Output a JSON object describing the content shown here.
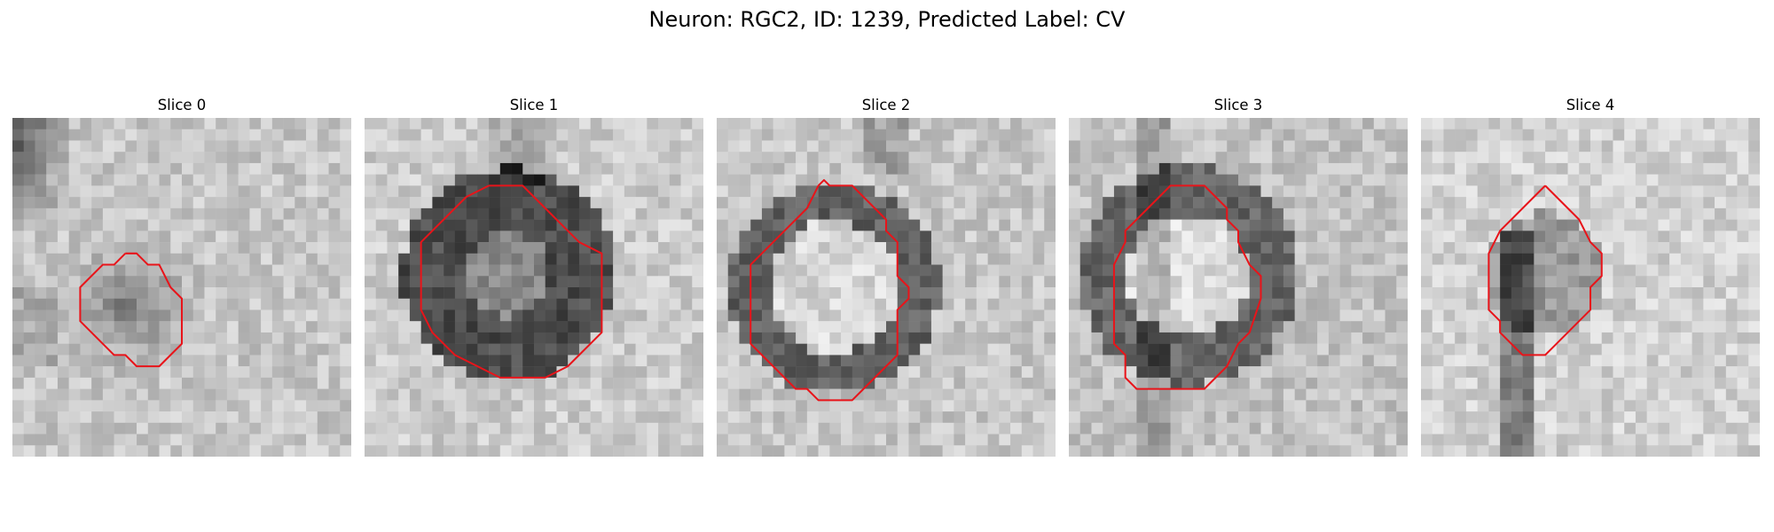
{
  "figure": {
    "title": "Neuron: RGC2, ID: 1239, Predicted Label: CV"
  },
  "panels": [
    {
      "title": "Slice 0",
      "roi": [
        [
          10,
          12
        ],
        [
          11,
          12
        ],
        [
          12,
          13
        ],
        [
          13,
          13
        ],
        [
          14,
          15
        ],
        [
          15,
          16
        ],
        [
          15,
          20
        ],
        [
          14,
          21
        ],
        [
          13,
          22
        ],
        [
          11,
          22
        ],
        [
          10,
          21
        ],
        [
          9,
          21
        ],
        [
          8,
          20
        ],
        [
          7,
          19
        ],
        [
          6,
          18
        ],
        [
          6,
          15
        ],
        [
          7,
          14
        ],
        [
          8,
          13
        ],
        [
          9,
          13
        ],
        [
          10,
          12
        ]
      ]
    },
    {
      "title": "Slice 1",
      "roi": [
        [
          11,
          6
        ],
        [
          14,
          6
        ],
        [
          15,
          7
        ],
        [
          16,
          8
        ],
        [
          17,
          9
        ],
        [
          18,
          10
        ],
        [
          19,
          11
        ],
        [
          21,
          12
        ],
        [
          21,
          19
        ],
        [
          20,
          20
        ],
        [
          19,
          21
        ],
        [
          18,
          22
        ],
        [
          16,
          23
        ],
        [
          12,
          23
        ],
        [
          10,
          22
        ],
        [
          8,
          21
        ],
        [
          7,
          20
        ],
        [
          6,
          19
        ],
        [
          5,
          17
        ],
        [
          5,
          11
        ],
        [
          6,
          10
        ],
        [
          7,
          9
        ],
        [
          8,
          8
        ],
        [
          9,
          7
        ],
        [
          11,
          6
        ]
      ]
    },
    {
      "title": "Slice 2",
      "roi": [
        [
          9,
          6
        ],
        [
          9.5,
          5.5
        ],
        [
          10,
          6
        ],
        [
          12,
          6
        ],
        [
          14,
          8
        ],
        [
          15,
          9
        ],
        [
          15,
          10
        ],
        [
          16,
          11
        ],
        [
          16,
          14
        ],
        [
          17,
          15
        ],
        [
          17,
          16
        ],
        [
          16,
          17
        ],
        [
          16,
          21
        ],
        [
          15,
          22
        ],
        [
          14,
          23
        ],
        [
          13,
          24
        ],
        [
          12,
          25
        ],
        [
          9,
          25
        ],
        [
          8,
          24
        ],
        [
          7,
          24
        ],
        [
          6,
          23
        ],
        [
          5,
          22
        ],
        [
          4,
          21
        ],
        [
          3,
          20
        ],
        [
          3,
          13
        ],
        [
          4,
          12
        ],
        [
          5,
          11
        ],
        [
          6,
          10
        ],
        [
          7,
          9
        ],
        [
          8,
          8
        ],
        [
          9,
          6
        ]
      ]
    },
    {
      "title": "Slice 3",
      "roi": [
        [
          10,
          6
        ],
        [
          12,
          6
        ],
        [
          13,
          7
        ],
        [
          14,
          8
        ],
        [
          14,
          9
        ],
        [
          15,
          10
        ],
        [
          15,
          11
        ],
        [
          16,
          13
        ],
        [
          17,
          14
        ],
        [
          17,
          16
        ],
        [
          16,
          19
        ],
        [
          15,
          20
        ],
        [
          14,
          22
        ],
        [
          13,
          23
        ],
        [
          12,
          24
        ],
        [
          8,
          24
        ],
        [
          6,
          24
        ],
        [
          5,
          23
        ],
        [
          5,
          21
        ],
        [
          4,
          20
        ],
        [
          4,
          13
        ],
        [
          5,
          11
        ],
        [
          5,
          10
        ],
        [
          6,
          9
        ],
        [
          7,
          8
        ],
        [
          8,
          7
        ],
        [
          9,
          6
        ],
        [
          10,
          6
        ]
      ]
    },
    {
      "title": "Slice 4",
      "roi": [
        [
          11,
          6
        ],
        [
          12,
          7
        ],
        [
          13,
          8
        ],
        [
          14,
          9
        ],
        [
          15,
          11
        ],
        [
          16,
          12
        ],
        [
          16,
          14
        ],
        [
          15,
          15
        ],
        [
          15,
          17
        ],
        [
          14,
          18
        ],
        [
          13,
          19
        ],
        [
          12,
          20
        ],
        [
          11,
          21
        ],
        [
          10,
          21
        ],
        [
          9,
          21
        ],
        [
          8,
          20
        ],
        [
          7,
          19
        ],
        [
          7,
          18
        ],
        [
          6,
          17
        ],
        [
          6,
          12
        ],
        [
          7,
          10
        ],
        [
          8,
          9
        ],
        [
          9,
          8
        ],
        [
          10,
          7
        ],
        [
          11,
          6
        ]
      ]
    }
  ]
}
